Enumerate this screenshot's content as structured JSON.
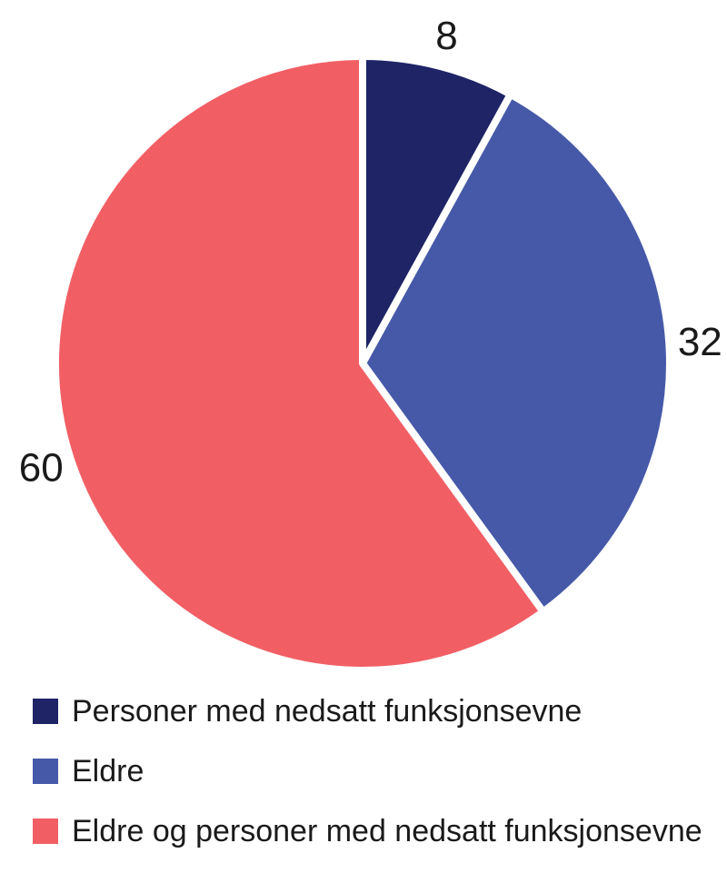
{
  "chart_data": {
    "type": "pie",
    "title": "",
    "slices": [
      {
        "label": "Personer med nedsatt funksjonsevne",
        "value": 8,
        "color": "#1e2466"
      },
      {
        "label": "Eldre",
        "value": 32,
        "color": "#4659a8"
      },
      {
        "label": "Eldre og personer med nedsatt funksjonsevne",
        "value": 60,
        "color": "#f15f65"
      }
    ],
    "total": 100,
    "start_angle_deg": 0,
    "direction": "clockwise",
    "value_labels_outside": true,
    "value_label_color": "#1a1a1a",
    "gap_color": "#ffffff",
    "legend_position": "bottom-left",
    "background_color": "#ffffff"
  }
}
